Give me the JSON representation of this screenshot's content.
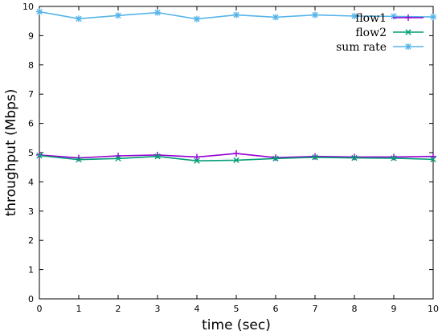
{
  "chart_data": {
    "type": "line",
    "xlabel": "time (sec)",
    "ylabel": "throughput (Mbps)",
    "xlim": [
      0,
      10
    ],
    "ylim": [
      0,
      10
    ],
    "xticks": [
      "0",
      "1",
      "2",
      "3",
      "4",
      "5",
      "6",
      "7",
      "8",
      "9",
      "10"
    ],
    "yticks": [
      "0",
      "1",
      "2",
      "3",
      "4",
      "5",
      "6",
      "7",
      "8",
      "9",
      "10"
    ],
    "grid": false,
    "legend_position": "top-right",
    "x": [
      0,
      1,
      2,
      3,
      4,
      5,
      6,
      7,
      8,
      9,
      10
    ],
    "series": [
      {
        "name": "flow1",
        "color": "#9400d3",
        "marker": "plus",
        "values": [
          4.92,
          4.82,
          4.89,
          4.92,
          4.85,
          4.97,
          4.83,
          4.87,
          4.85,
          4.85,
          4.87
        ]
      },
      {
        "name": "flow2",
        "color": "#009e73",
        "marker": "cross",
        "values": [
          4.9,
          4.76,
          4.8,
          4.87,
          4.72,
          4.74,
          4.8,
          4.84,
          4.82,
          4.81,
          4.77
        ]
      },
      {
        "name": "sum rate",
        "color": "#56b4e9",
        "marker": "star",
        "values": [
          9.82,
          9.58,
          9.69,
          9.79,
          9.57,
          9.71,
          9.63,
          9.71,
          9.67,
          9.66,
          9.64
        ]
      }
    ]
  }
}
